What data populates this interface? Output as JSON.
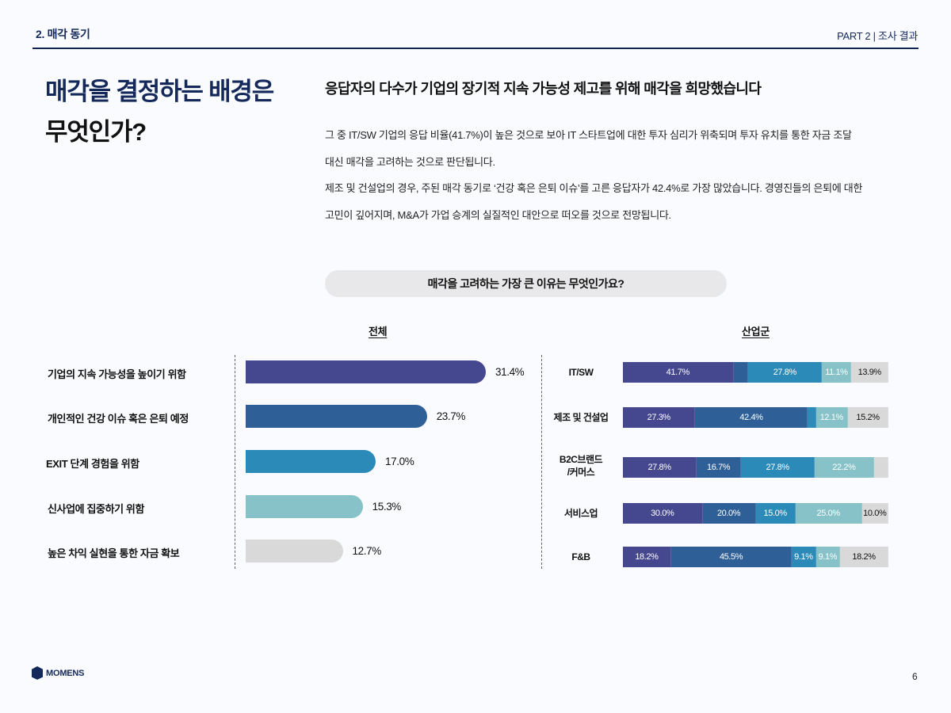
{
  "header": {
    "section": "2. 매각 동기",
    "part": "PART 2 | 조사 결과"
  },
  "title": {
    "line1": "매각을 결정하는 배경은",
    "line2": "무엇인가?"
  },
  "headline": "응답자의 다수가 기업의 장기적 지속 가능성 제고를 위해 매각을 희망했습니다",
  "body": [
    "그 중 IT/SW 기업의 응답 비율(41.7%)이 높은 것으로 보아 IT 스타트업에 대한 투자 심리가 위축되며 투자 유치를 통한 자금 조달",
    "대신 매각을 고려하는 것으로 판단됩니다.",
    "제조 및 건설업의 경우, 주된 매각 동기로 ‘건강 혹은 은퇴 이슈’를 고른 응답자가 42.4%로 가장 많았습니다. 경영진들의 은퇴에 대한",
    "고민이 깊어지며, M&A가 가업 승계의 실질적인 대안으로 떠오를 것으로 전망됩니다."
  ],
  "question": "매각을 고려하는 가장 큰 이유는 무엇인가요?",
  "section_labels": {
    "overall": "전체",
    "industry": "산업군"
  },
  "colors": {
    "c1": "#45478f",
    "c2": "#2e5f96",
    "c3": "#2b8ab8",
    "c4": "#86c2c8",
    "c5": "#d9d9d9",
    "navy": "#14285a"
  },
  "chart_data": [
    {
      "type": "bar",
      "orientation": "horizontal",
      "title": "전체",
      "categories": [
        "기업의 지속 가능성을 높이기 위함",
        "개인적인 건강 이슈 혹은 은퇴 예정",
        "EXIT 단계 경험을 위함",
        "신사업에 집중하기 위함",
        "높은 차익 실현을 통한 자금 확보"
      ],
      "values": [
        31.4,
        23.7,
        17.0,
        15.3,
        12.7
      ],
      "labels": [
        "31.4%",
        "23.7%",
        "17.0%",
        "15.3%",
        "12.7%"
      ],
      "unit": "%"
    },
    {
      "type": "bar",
      "orientation": "horizontal",
      "stacked": true,
      "normalized": true,
      "title": "산업군",
      "categories": [
        "IT/SW",
        "제조 및 건설업",
        "B2C브랜드 /커머스",
        "서비스업",
        "F&B"
      ],
      "series": [
        {
          "name": "기업의 지속 가능성을 높이기 위함",
          "values": [
            41.7,
            27.3,
            27.8,
            30.0,
            18.2
          ],
          "labels": [
            "41.7%",
            "27.3%",
            "27.8%",
            "30.0%",
            "18.2%"
          ]
        },
        {
          "name": "개인적인 건강 이슈 혹은 은퇴 예정",
          "values": [
            5.6,
            42.4,
            16.7,
            20.0,
            45.5
          ],
          "labels": [
            "",
            "42.4%",
            "16.7%",
            "20.0%",
            "45.5%"
          ]
        },
        {
          "name": "EXIT 단계 경험을 위함",
          "values": [
            27.8,
            3.0,
            27.8,
            15.0,
            9.1
          ],
          "labels": [
            "27.8%",
            "",
            "27.8%",
            "15.0%",
            "9.1%"
          ]
        },
        {
          "name": "신사업에 집중하기 위함",
          "values": [
            11.1,
            12.1,
            22.2,
            25.0,
            9.1
          ],
          "labels": [
            "11.1%",
            "12.1%",
            "22.2%",
            "25.0%",
            "9.1%"
          ]
        },
        {
          "name": "높은 차익 실현을 통한 자금 확보",
          "values": [
            13.9,
            15.2,
            5.5,
            10.0,
            18.2
          ],
          "labels": [
            "13.9%",
            "15.2%",
            "",
            "10.0%",
            "18.2%"
          ]
        }
      ],
      "unit": "%"
    }
  ],
  "footer": {
    "logo": "MOMENS",
    "page": "6"
  }
}
